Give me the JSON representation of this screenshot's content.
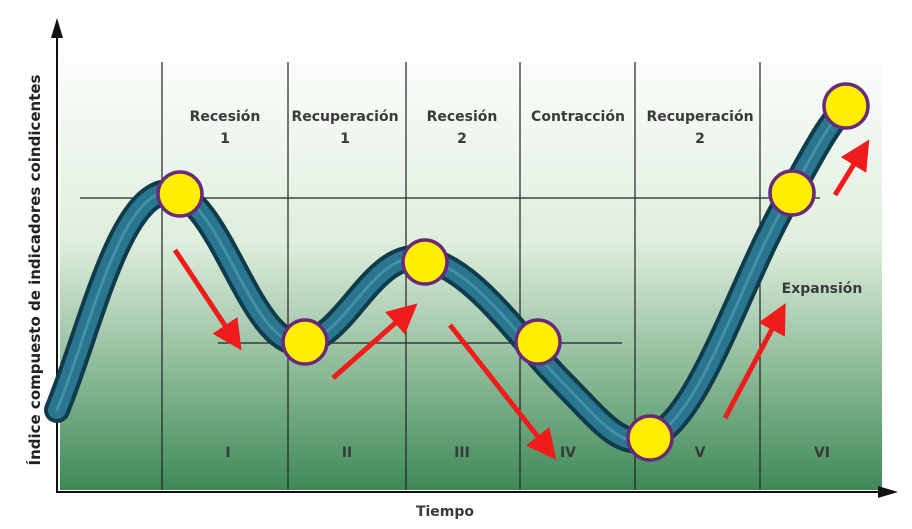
{
  "y_axis_label": "Índice compuesto de indicadores coindicentes",
  "x_axis_label": "Tiempo",
  "phases": [
    {
      "lines": [
        "Recesión",
        "1"
      ]
    },
    {
      "lines": [
        "Recuperación",
        "1"
      ]
    },
    {
      "lines": [
        "Recesión",
        "2"
      ]
    },
    {
      "lines": [
        "Contracción"
      ]
    },
    {
      "lines": [
        "Recuperación",
        "2"
      ]
    }
  ],
  "stages": [
    "I",
    "II",
    "III",
    "IV",
    "V",
    "VI"
  ],
  "annotation": "Expansión"
}
